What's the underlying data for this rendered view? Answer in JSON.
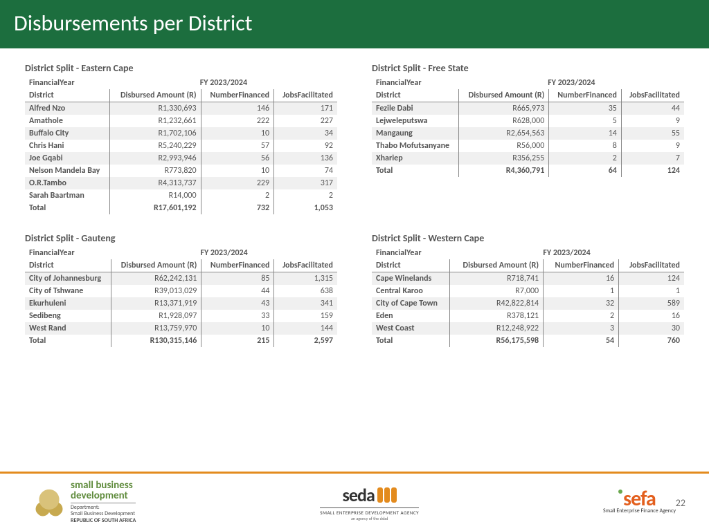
{
  "title": "Disbursements per District",
  "fy_label": "FY 2023/2024",
  "header_labels": {
    "financial_year": "FinancialYear",
    "district": "District",
    "disbursed": "Disbursed Amount (R)",
    "number_financed": "NumberFinanced",
    "jobs": "JobsFacilitated"
  },
  "panels": [
    {
      "title": "District Split - Eastern Cape",
      "rows": [
        {
          "district": "Alfred Nzo",
          "disbursed": "R1,330,693",
          "nf": "146",
          "jobs": "171"
        },
        {
          "district": "Amathole",
          "disbursed": "R1,232,661",
          "nf": "222",
          "jobs": "227"
        },
        {
          "district": "Buffalo City",
          "disbursed": "R1,702,106",
          "nf": "10",
          "jobs": "34"
        },
        {
          "district": "Chris Hani",
          "disbursed": "R5,240,229",
          "nf": "57",
          "jobs": "92"
        },
        {
          "district": "Joe Gqabi",
          "disbursed": "R2,993,946",
          "nf": "56",
          "jobs": "136"
        },
        {
          "district": "Nelson Mandela Bay",
          "disbursed": "R773,820",
          "nf": "10",
          "jobs": "74"
        },
        {
          "district": "O.R.Tambo",
          "disbursed": "R4,313,737",
          "nf": "229",
          "jobs": "317"
        },
        {
          "district": "Sarah Baartman",
          "disbursed": "R14,000",
          "nf": "2",
          "jobs": "2"
        }
      ],
      "total": {
        "district": "Total",
        "disbursed": "R17,601,192",
        "nf": "732",
        "jobs": "1,053"
      }
    },
    {
      "title": "District Split - Free State",
      "rows": [
        {
          "district": "Fezile Dabi",
          "disbursed": "R665,973",
          "nf": "35",
          "jobs": "44"
        },
        {
          "district": "Lejweleputswa",
          "disbursed": "R628,000",
          "nf": "5",
          "jobs": "9"
        },
        {
          "district": "Mangaung",
          "disbursed": "R2,654,563",
          "nf": "14",
          "jobs": "55"
        },
        {
          "district": "Thabo Mofutsanyane",
          "disbursed": "R56,000",
          "nf": "8",
          "jobs": "9"
        },
        {
          "district": "Xhariep",
          "disbursed": "R356,255",
          "nf": "2",
          "jobs": "7"
        }
      ],
      "total": {
        "district": "Total",
        "disbursed": "R4,360,791",
        "nf": "64",
        "jobs": "124"
      }
    },
    {
      "title": "District Split - Gauteng",
      "rows": [
        {
          "district": "City of Johannesburg",
          "disbursed": "R62,242,131",
          "nf": "85",
          "jobs": "1,315"
        },
        {
          "district": "City of Tshwane",
          "disbursed": "R39,013,029",
          "nf": "44",
          "jobs": "638"
        },
        {
          "district": "Ekurhuleni",
          "disbursed": "R13,371,919",
          "nf": "43",
          "jobs": "341"
        },
        {
          "district": "Sedibeng",
          "disbursed": "R1,928,097",
          "nf": "33",
          "jobs": "159"
        },
        {
          "district": "West Rand",
          "disbursed": "R13,759,970",
          "nf": "10",
          "jobs": "144"
        }
      ],
      "total": {
        "district": "Total",
        "disbursed": "R130,315,146",
        "nf": "215",
        "jobs": "2,597"
      }
    },
    {
      "title": "District Split - Western Cape",
      "rows": [
        {
          "district": "Cape Winelands",
          "disbursed": "R718,741",
          "nf": "16",
          "jobs": "124"
        },
        {
          "district": "Central Karoo",
          "disbursed": "R7,000",
          "nf": "1",
          "jobs": "1"
        },
        {
          "district": "City of Cape Town",
          "disbursed": "R42,822,814",
          "nf": "32",
          "jobs": "589"
        },
        {
          "district": "Eden",
          "disbursed": "R378,121",
          "nf": "2",
          "jobs": "16"
        },
        {
          "district": "West Coast",
          "disbursed": "R12,248,922",
          "nf": "3",
          "jobs": "30"
        }
      ],
      "total": {
        "district": "Total",
        "disbursed": "R56,175,598",
        "nf": "54",
        "jobs": "760"
      }
    }
  ],
  "footer": {
    "sbd_line1": "small business",
    "sbd_line2": "development",
    "sbd_dep1": "Department:",
    "sbd_dep2": "Small Business Development",
    "sbd_dep3": "REPUBLIC OF SOUTH AFRICA",
    "seda_word": "seda",
    "seda_sub": "SMALL ENTERPRISE DEVELOPMENT AGENCY",
    "seda_sub2": "an agency of the dsbd",
    "sefa_word": "sefa",
    "sefa_sub": "Small Enterprise Finance Agency"
  },
  "page_number": "22",
  "colors": {
    "header_bg": "#1c6e3e",
    "accent_orange": "#e38b1e",
    "sefa_orange": "#e35f1e",
    "text_gray": "#555555"
  }
}
